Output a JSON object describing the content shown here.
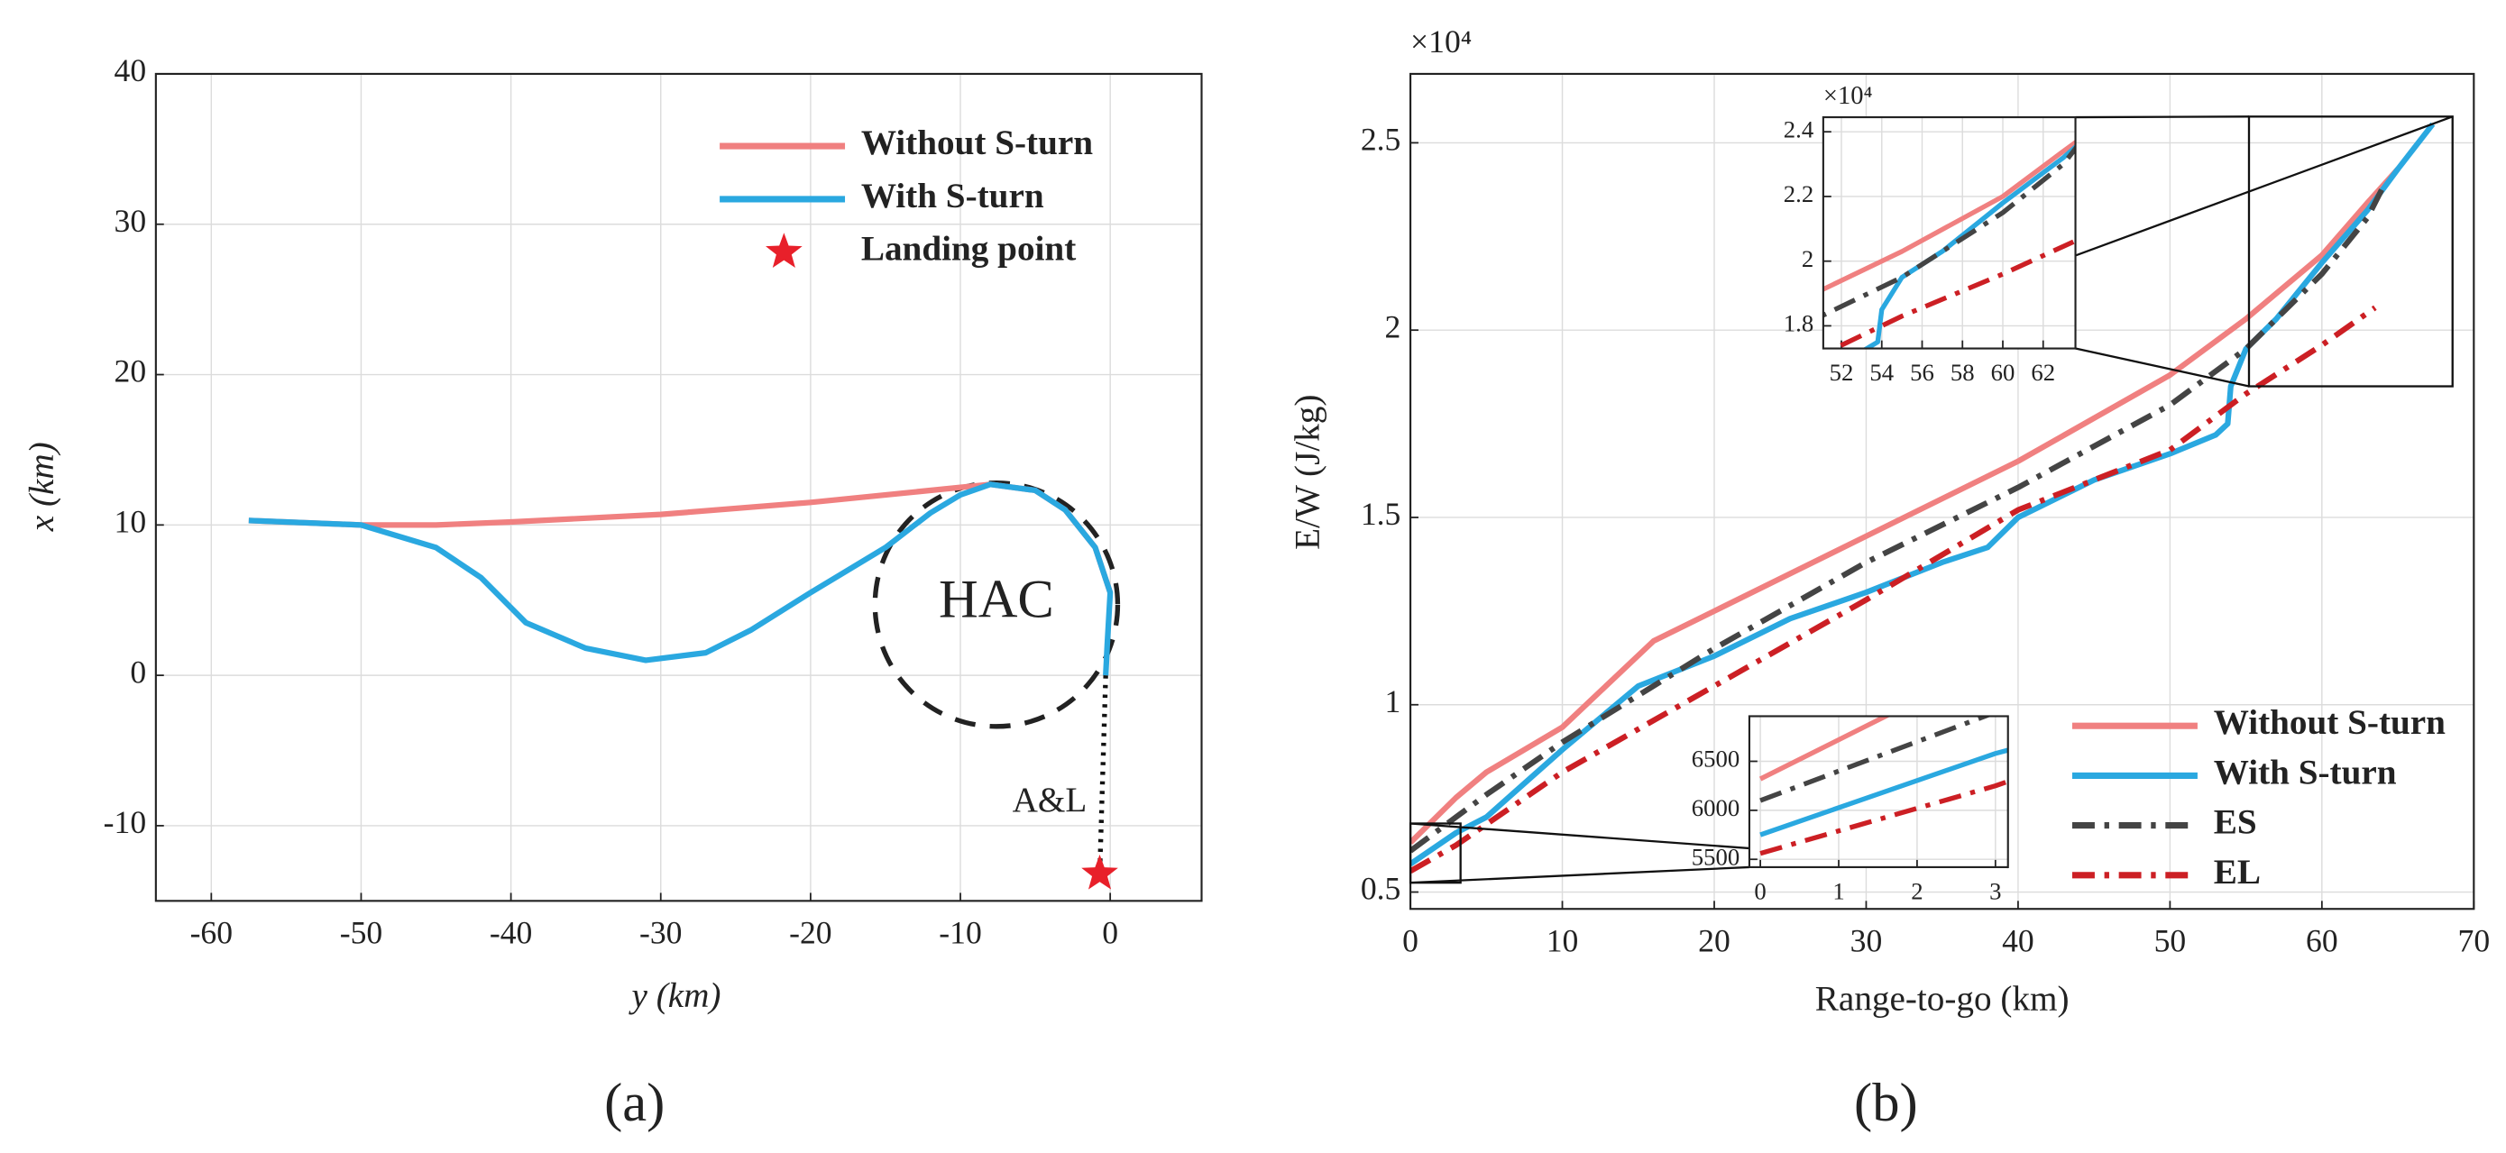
{
  "chart_data": [
    {
      "type": "line",
      "panel_label": "(a)",
      "xlabel": "y (km)",
      "ylabel": "x (km)",
      "xlim": [
        -63.7,
        6.1
      ],
      "ylim": [
        -15,
        40
      ],
      "xticks": [
        -60,
        -50,
        -40,
        -30,
        -20,
        -10,
        0
      ],
      "yticks": [
        -10,
        0,
        10,
        20,
        30,
        40
      ],
      "grid": true,
      "legend": "upper right",
      "series": [
        {
          "name": "Without S-turn",
          "color": "#f08080",
          "linestyle": "solid",
          "x": [
            -57.5,
            -50,
            -45,
            -40,
            -30,
            -20,
            -10,
            -8,
            -5,
            -3,
            -1,
            0
          ],
          "values": [
            10.3,
            10,
            10,
            10.2,
            10.7,
            11.5,
            12.5,
            12.7,
            12.3,
            11,
            8.5,
            5.5
          ]
        },
        {
          "name": "With S-turn",
          "color": "#2aa8e0",
          "linestyle": "solid",
          "x": [
            -57.5,
            -50,
            -45,
            -42,
            -39,
            -35,
            -31,
            -27,
            -24,
            -20,
            -15,
            -12,
            -10,
            -8,
            -5,
            -3,
            -1,
            0,
            -0.2,
            -0.3
          ],
          "values": [
            10.3,
            10,
            8.5,
            6.5,
            3.5,
            1.8,
            1,
            1.5,
            3,
            5.5,
            8.5,
            10.8,
            12,
            12.7,
            12.3,
            11,
            8.5,
            5.5,
            2,
            0
          ]
        },
        {
          "name": "Landing point",
          "color": "#e8202a",
          "marker": "star",
          "x": [
            -0.7
          ],
          "values": [
            -13.2
          ]
        }
      ],
      "hac": {
        "label": "HAC",
        "center": [
          -7.6,
          4.7
        ],
        "radius": 8.1
      },
      "approach": {
        "label": "A&L",
        "x": [
          -0.3,
          -0.7
        ],
        "values": [
          0,
          -13.2
        ]
      }
    },
    {
      "type": "line",
      "panel_label": "(b)",
      "xlabel": "Range-to-go (km)",
      "ylabel": "E/W (J/kg)",
      "exponent": "×10⁴",
      "xlim": [
        0,
        70
      ],
      "ylim": [
        4550,
        26840
      ],
      "xticks": [
        0,
        10,
        20,
        30,
        40,
        50,
        60,
        70
      ],
      "yticks": [
        {
          "value": 5000,
          "label": "0.5"
        },
        {
          "value": 10000,
          "label": "1"
        },
        {
          "value": 15000,
          "label": "1.5"
        },
        {
          "value": 20000,
          "label": "2"
        },
        {
          "value": 25000,
          "label": "2.5"
        }
      ],
      "grid": true,
      "legend": "lower right",
      "series": [
        {
          "name": "Without S-turn",
          "color": "#f08080",
          "linestyle": "solid",
          "x": [
            0,
            3,
            5,
            10,
            16,
            20,
            30,
            40,
            50,
            55,
            60,
            63,
            65
          ],
          "values": [
            6320,
            7520,
            8200,
            9400,
            11700,
            12500,
            14500,
            16500,
            18800,
            20300,
            22000,
            23400,
            24300
          ]
        },
        {
          "name": "With S-turn",
          "color": "#2aa8e0",
          "linestyle": "solid",
          "x": [
            0,
            3,
            5,
            10,
            15,
            20,
            25,
            30,
            35,
            38,
            40,
            45,
            50,
            53,
            53.8,
            54,
            55,
            57,
            60,
            63,
            65,
            67.3
          ],
          "values": [
            5750,
            6580,
            7000,
            8800,
            10500,
            11300,
            12300,
            13000,
            13800,
            14200,
            15000,
            16000,
            16700,
            17200,
            17500,
            18500,
            19500,
            20300,
            21800,
            23200,
            24300,
            25500
          ]
        },
        {
          "name": "ES",
          "color": "#444444",
          "linestyle": "dashdot",
          "x": [
            0,
            3,
            5,
            10,
            20,
            30,
            40,
            50,
            55,
            60,
            63,
            64
          ],
          "values": [
            6100,
            7000,
            7600,
            9000,
            11500,
            13800,
            15800,
            18000,
            19500,
            21500,
            23000,
            23800
          ]
        },
        {
          "name": "EL",
          "color": "#cc1f24",
          "linestyle": "dashdot",
          "x": [
            0,
            3,
            10,
            20,
            30,
            40,
            50,
            55,
            60,
            63.5
          ],
          "values": [
            5560,
            6250,
            8200,
            10500,
            12800,
            15200,
            16800,
            18300,
            19600,
            20600
          ]
        }
      ],
      "insets": [
        {
          "xlim": [
            51.1,
            63.6
          ],
          "ylim": [
            17300,
            24450
          ],
          "xticks": [
            52,
            54,
            56,
            58,
            60,
            62
          ],
          "yticks": [
            {
              "value": 18000,
              "label": "1.8"
            },
            {
              "value": 20000,
              "label": "2"
            },
            {
              "value": 22000,
              "label": "2.2"
            },
            {
              "value": 24000,
              "label": "2.4"
            }
          ],
          "exponent": "×10⁴",
          "grid": true,
          "zoom": {
            "xlim": [
              55.2,
              68.6
            ],
            "ylim": [
              18500,
              25700
            ]
          }
        },
        {
          "xlim": [
            -0.14,
            3.16
          ],
          "ylim": [
            5420,
            6960
          ],
          "xticks": [
            0,
            1,
            2,
            3
          ],
          "yticks": [
            5500,
            6000,
            6500
          ],
          "grid": true,
          "zoom": {
            "xlim": [
              0,
              3.3
            ],
            "ylim": [
              5250,
              6830
            ]
          }
        }
      ]
    }
  ]
}
